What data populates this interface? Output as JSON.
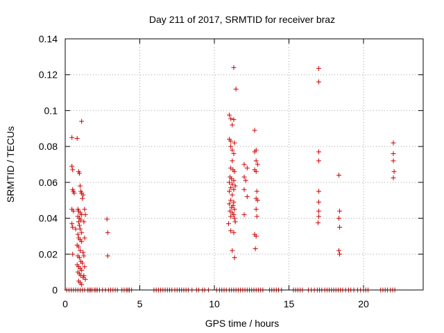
{
  "chart_data": {
    "type": "scatter",
    "title": "Day 211 of 2017, SRMTID for receiver braz",
    "xlabel": "GPS time / hours",
    "ylabel": "SRMTID / TECUs",
    "xlim": [
      0,
      24
    ],
    "ylim": [
      0,
      0.14
    ],
    "xticks": [
      0,
      5,
      10,
      15,
      20
    ],
    "xtick_labels": [
      "0",
      "5",
      "10",
      "15",
      "20"
    ],
    "yticks": [
      0,
      0.02,
      0.04,
      0.06,
      0.08,
      0.1,
      0.12,
      0.14
    ],
    "ytick_labels": [
      "0",
      "0.02",
      "0.04",
      "0.06",
      "0.08",
      "0.1",
      "0.12",
      "0.14"
    ],
    "grid": true,
    "marker": "+",
    "color": "#cc0000",
    "series": [
      {
        "name": "SRMTID",
        "points": [
          [
            0.45,
            0.069
          ],
          [
            0.5,
            0.067
          ],
          [
            0.45,
            0.085
          ],
          [
            0.8,
            0.0845
          ],
          [
            1.1,
            0.094
          ],
          [
            0.5,
            0.056
          ],
          [
            0.55,
            0.055
          ],
          [
            0.6,
            0.054
          ],
          [
            0.45,
            0.045
          ],
          [
            0.55,
            0.044
          ],
          [
            0.45,
            0.037
          ],
          [
            0.5,
            0.035
          ],
          [
            0.7,
            0.034
          ],
          [
            0.5,
            0.02
          ],
          [
            0.9,
            0.066
          ],
          [
            0.95,
            0.065
          ],
          [
            1.0,
            0.058
          ],
          [
            1.05,
            0.055
          ],
          [
            1.1,
            0.054
          ],
          [
            1.2,
            0.053
          ],
          [
            1.15,
            0.051
          ],
          [
            0.85,
            0.045
          ],
          [
            0.9,
            0.044
          ],
          [
            1.0,
            0.043
          ],
          [
            1.1,
            0.042
          ],
          [
            0.85,
            0.041
          ],
          [
            0.95,
            0.04
          ],
          [
            1.05,
            0.039
          ],
          [
            0.9,
            0.038
          ],
          [
            0.95,
            0.036
          ],
          [
            1.0,
            0.034
          ],
          [
            1.1,
            0.032
          ],
          [
            0.85,
            0.031
          ],
          [
            0.9,
            0.029
          ],
          [
            1.0,
            0.028
          ],
          [
            1.1,
            0.027
          ],
          [
            0.8,
            0.025
          ],
          [
            0.9,
            0.024
          ],
          [
            1.0,
            0.022
          ],
          [
            1.2,
            0.021
          ],
          [
            0.85,
            0.019
          ],
          [
            0.95,
            0.018
          ],
          [
            1.05,
            0.016
          ],
          [
            1.15,
            0.015
          ],
          [
            0.8,
            0.014
          ],
          [
            0.9,
            0.013
          ],
          [
            1.0,
            0.012
          ],
          [
            1.1,
            0.011
          ],
          [
            0.85,
            0.01
          ],
          [
            0.95,
            0.009
          ],
          [
            1.05,
            0.008
          ],
          [
            1.2,
            0.007
          ],
          [
            0.9,
            0.005
          ],
          [
            1.0,
            0.004
          ],
          [
            1.1,
            0.003
          ],
          [
            1.3,
            0.045
          ],
          [
            1.35,
            0.042
          ],
          [
            1.25,
            0.038
          ],
          [
            1.3,
            0.029
          ],
          [
            1.25,
            0.019
          ],
          [
            1.3,
            0.013
          ],
          [
            1.25,
            0.008
          ],
          [
            1.35,
            0.006
          ],
          [
            2.8,
            0.0395
          ],
          [
            2.85,
            0.032
          ],
          [
            2.85,
            0.019
          ],
          [
            11.3,
            0.124
          ],
          [
            11.45,
            0.112
          ],
          [
            11.0,
            0.0975
          ],
          [
            11.1,
            0.0955
          ],
          [
            11.3,
            0.095
          ],
          [
            11.2,
            0.092
          ],
          [
            11.0,
            0.084
          ],
          [
            11.1,
            0.083
          ],
          [
            11.35,
            0.082
          ],
          [
            11.1,
            0.08
          ],
          [
            11.2,
            0.078
          ],
          [
            11.3,
            0.076
          ],
          [
            11.2,
            0.072
          ],
          [
            11.1,
            0.068
          ],
          [
            11.25,
            0.067
          ],
          [
            11.35,
            0.066
          ],
          [
            11.05,
            0.063
          ],
          [
            11.15,
            0.062
          ],
          [
            11.3,
            0.061
          ],
          [
            11.0,
            0.06
          ],
          [
            11.2,
            0.059
          ],
          [
            11.4,
            0.058
          ],
          [
            11.1,
            0.057
          ],
          [
            11.3,
            0.056
          ],
          [
            11.0,
            0.055
          ],
          [
            11.2,
            0.053
          ],
          [
            11.1,
            0.05
          ],
          [
            11.3,
            0.049
          ],
          [
            11.0,
            0.048
          ],
          [
            11.25,
            0.047
          ],
          [
            11.15,
            0.046
          ],
          [
            11.35,
            0.045
          ],
          [
            11.05,
            0.044
          ],
          [
            11.2,
            0.043
          ],
          [
            11.3,
            0.042
          ],
          [
            11.1,
            0.041
          ],
          [
            11.35,
            0.04
          ],
          [
            11.4,
            0.038
          ],
          [
            10.95,
            0.037
          ],
          [
            11.1,
            0.033
          ],
          [
            11.3,
            0.032
          ],
          [
            11.2,
            0.022
          ],
          [
            11.35,
            0.018
          ],
          [
            12.0,
            0.07
          ],
          [
            12.2,
            0.068
          ],
          [
            12.0,
            0.063
          ],
          [
            12.1,
            0.061
          ],
          [
            12.0,
            0.056
          ],
          [
            12.2,
            0.052
          ],
          [
            12.0,
            0.042
          ],
          [
            12.7,
            0.089
          ],
          [
            12.7,
            0.077
          ],
          [
            12.8,
            0.078
          ],
          [
            12.8,
            0.072
          ],
          [
            12.9,
            0.07
          ],
          [
            12.7,
            0.067
          ],
          [
            12.8,
            0.066
          ],
          [
            12.85,
            0.055
          ],
          [
            12.8,
            0.051
          ],
          [
            12.9,
            0.05
          ],
          [
            12.8,
            0.045
          ],
          [
            12.85,
            0.041
          ],
          [
            12.7,
            0.031
          ],
          [
            12.8,
            0.03
          ],
          [
            12.75,
            0.023
          ],
          [
            17.0,
            0.1235
          ],
          [
            17.0,
            0.116
          ],
          [
            17.0,
            0.077
          ],
          [
            17.0,
            0.072
          ],
          [
            17.0,
            0.055
          ],
          [
            17.0,
            0.049
          ],
          [
            17.0,
            0.044
          ],
          [
            17.0,
            0.041
          ],
          [
            16.95,
            0.0375
          ],
          [
            18.35,
            0.064
          ],
          [
            18.4,
            0.044
          ],
          [
            18.35,
            0.04
          ],
          [
            18.4,
            0.035
          ],
          [
            18.35,
            0.022
          ],
          [
            18.4,
            0.02
          ],
          [
            22.0,
            0.082
          ],
          [
            22.0,
            0.076
          ],
          [
            22.0,
            0.072
          ],
          [
            22.05,
            0.066
          ],
          [
            22.0,
            0.0625
          ],
          [
            0.1,
            0
          ],
          [
            0.25,
            0
          ],
          [
            0.4,
            0
          ],
          [
            0.55,
            0
          ],
          [
            0.7,
            0
          ],
          [
            0.85,
            0
          ],
          [
            1.0,
            0
          ],
          [
            1.15,
            0
          ],
          [
            1.3,
            0
          ],
          [
            1.5,
            0
          ],
          [
            1.6,
            0
          ],
          [
            1.7,
            0
          ],
          [
            1.8,
            0
          ],
          [
            1.95,
            0
          ],
          [
            2.05,
            0
          ],
          [
            2.15,
            0
          ],
          [
            2.3,
            0
          ],
          [
            2.5,
            0
          ],
          [
            2.7,
            0
          ],
          [
            2.9,
            0
          ],
          [
            3.05,
            0
          ],
          [
            3.2,
            0
          ],
          [
            3.35,
            0
          ],
          [
            3.5,
            0
          ],
          [
            3.8,
            0
          ],
          [
            3.95,
            0
          ],
          [
            4.1,
            0
          ],
          [
            4.2,
            0
          ],
          [
            4.3,
            0
          ],
          [
            4.45,
            0
          ],
          [
            5.95,
            0
          ],
          [
            6.1,
            0
          ],
          [
            6.25,
            0
          ],
          [
            6.4,
            0
          ],
          [
            6.55,
            0
          ],
          [
            6.7,
            0
          ],
          [
            6.85,
            0
          ],
          [
            7.0,
            0
          ],
          [
            7.15,
            0
          ],
          [
            7.35,
            0
          ],
          [
            7.5,
            0
          ],
          [
            7.65,
            0
          ],
          [
            7.8,
            0
          ],
          [
            7.95,
            0
          ],
          [
            8.1,
            0
          ],
          [
            8.25,
            0
          ],
          [
            8.5,
            0
          ],
          [
            8.8,
            0
          ],
          [
            8.95,
            0
          ],
          [
            9.2,
            0
          ],
          [
            9.35,
            0
          ],
          [
            9.6,
            0
          ],
          [
            10.15,
            0
          ],
          [
            10.35,
            0
          ],
          [
            10.5,
            0
          ],
          [
            10.65,
            0
          ],
          [
            10.8,
            0
          ],
          [
            11.0,
            0
          ],
          [
            11.15,
            0
          ],
          [
            11.3,
            0
          ],
          [
            11.45,
            0
          ],
          [
            11.6,
            0
          ],
          [
            11.75,
            0
          ],
          [
            11.9,
            0
          ],
          [
            12.05,
            0
          ],
          [
            12.2,
            0
          ],
          [
            12.35,
            0
          ],
          [
            12.5,
            0
          ],
          [
            12.65,
            0
          ],
          [
            12.8,
            0
          ],
          [
            12.95,
            0
          ],
          [
            13.1,
            0
          ],
          [
            13.25,
            0
          ],
          [
            13.7,
            0
          ],
          [
            13.85,
            0
          ],
          [
            14.0,
            0
          ],
          [
            14.15,
            0
          ],
          [
            14.3,
            0
          ],
          [
            14.5,
            0
          ],
          [
            15.3,
            0
          ],
          [
            15.45,
            0
          ],
          [
            15.6,
            0
          ],
          [
            15.75,
            0
          ],
          [
            15.9,
            0
          ],
          [
            16.3,
            0
          ],
          [
            16.5,
            0
          ],
          [
            16.7,
            0
          ],
          [
            16.9,
            0
          ],
          [
            17.05,
            0
          ],
          [
            17.2,
            0
          ],
          [
            17.4,
            0
          ],
          [
            17.55,
            0
          ],
          [
            17.7,
            0
          ],
          [
            17.85,
            0
          ],
          [
            18.0,
            0
          ],
          [
            18.15,
            0
          ],
          [
            18.3,
            0
          ],
          [
            18.45,
            0
          ],
          [
            18.6,
            0
          ],
          [
            18.8,
            0
          ],
          [
            19.0,
            0
          ],
          [
            19.15,
            0
          ],
          [
            19.35,
            0
          ],
          [
            19.6,
            0
          ],
          [
            19.8,
            0
          ],
          [
            20.0,
            0
          ],
          [
            20.15,
            0
          ],
          [
            20.3,
            0
          ],
          [
            21.15,
            0
          ],
          [
            21.3,
            0
          ],
          [
            21.45,
            0
          ],
          [
            21.6,
            0
          ],
          [
            21.8,
            0
          ],
          [
            21.95,
            0
          ],
          [
            22.1,
            0
          ]
        ]
      }
    ]
  }
}
